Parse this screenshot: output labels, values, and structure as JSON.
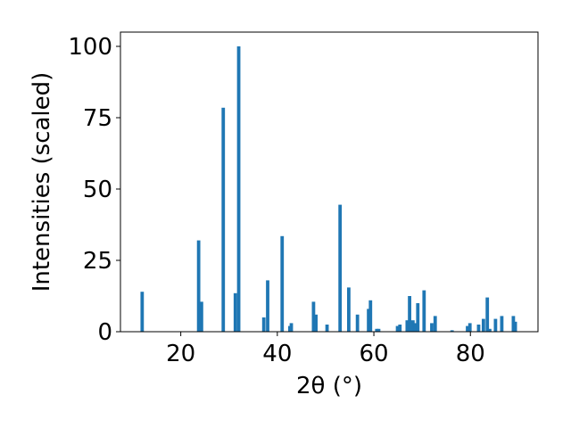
{
  "chart_data": {
    "type": "bar",
    "title": "",
    "xlabel": "2θ (°)",
    "ylabel": "Intensities (scaled)",
    "xlim": [
      7.5,
      94
    ],
    "ylim": [
      0,
      105
    ],
    "x_ticks": [
      20,
      40,
      60,
      80
    ],
    "y_ticks": [
      0,
      25,
      50,
      75,
      100
    ],
    "x_tick_labels": [
      "20",
      "40",
      "60",
      "80"
    ],
    "y_tick_labels": [
      "0",
      "25",
      "50",
      "75",
      "100"
    ],
    "bar_width": 0.7,
    "bar_color": "#1f77b4",
    "grid": false,
    "legend": "none",
    "x": [
      12.0,
      23.7,
      24.3,
      28.8,
      31.3,
      32.0,
      37.2,
      38.0,
      41.0,
      42.6,
      42.9,
      47.5,
      48.0,
      50.3,
      53.0,
      54.8,
      56.6,
      58.9,
      59.3,
      60.6,
      61.0,
      64.9,
      65.4,
      66.9,
      67.4,
      68.1,
      68.6,
      69.1,
      70.4,
      72.0,
      72.7,
      76.2,
      79.4,
      79.9,
      81.7,
      82.7,
      83.5,
      84.0,
      85.2,
      86.5,
      88.9,
      89.3
    ],
    "values": [
      14,
      32,
      10.5,
      78.5,
      13.5,
      100,
      5,
      18,
      33.5,
      2,
      3,
      10.5,
      6,
      2.5,
      44.5,
      15.5,
      6,
      8,
      11,
      1,
      1,
      2,
      2.5,
      4,
      12.5,
      4,
      3,
      10,
      14.5,
      3,
      5.5,
      0.5,
      2,
      3,
      2.5,
      4.5,
      12,
      1,
      4.5,
      5.5,
      5.5,
      3.5
    ]
  }
}
